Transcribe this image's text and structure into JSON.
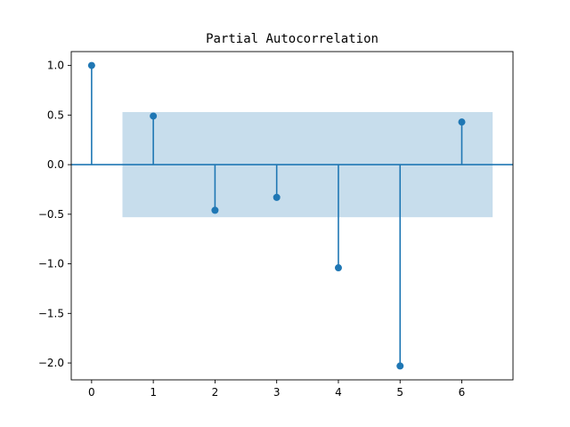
{
  "chart_data": {
    "type": "stem",
    "title": "Partial Autocorrelation",
    "xlabel": "",
    "ylabel": "",
    "lags": [
      0,
      1,
      2,
      3,
      4,
      5,
      6
    ],
    "values": [
      1.0,
      0.49,
      -0.46,
      -0.33,
      -1.04,
      -2.03,
      0.43
    ],
    "confidence_band": {
      "lower": -0.53,
      "upper": 0.53,
      "x_from": 0.5,
      "x_to": 6.5
    },
    "xlim": [
      -0.33,
      6.83
    ],
    "ylim": [
      -2.17,
      1.14
    ],
    "x_ticks": [
      0,
      1,
      2,
      3,
      4,
      5,
      6
    ],
    "x_tick_labels": [
      "0",
      "1",
      "2",
      "3",
      "4",
      "5",
      "6"
    ],
    "y_ticks": [
      1.0,
      0.5,
      0.0,
      -0.5,
      -1.0,
      -1.5,
      -2.0
    ],
    "y_tick_labels": [
      "1.0",
      "0.5",
      "0.0",
      "−0.5",
      "−1.0",
      "−1.5",
      "−2.0"
    ],
    "grid": false,
    "colors": {
      "stem": "#1f77b4",
      "band": "#1f77b4",
      "band_opacity": 0.25,
      "zero_line": "#1f77b4",
      "axes": "#000000"
    }
  }
}
